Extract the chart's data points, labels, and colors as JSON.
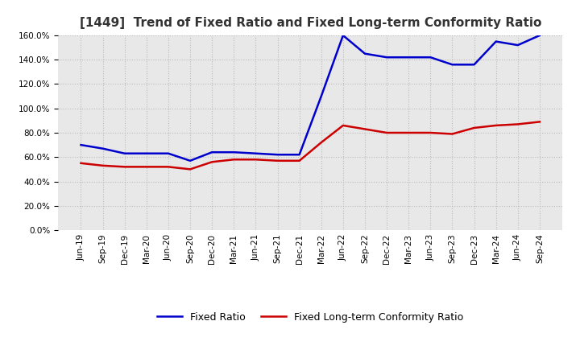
{
  "title": "[1449]  Trend of Fixed Ratio and Fixed Long-term Conformity Ratio",
  "x_labels": [
    "Jun-19",
    "Sep-19",
    "Dec-19",
    "Mar-20",
    "Jun-20",
    "Sep-20",
    "Dec-20",
    "Mar-21",
    "Jun-21",
    "Sep-21",
    "Dec-21",
    "Mar-22",
    "Jun-22",
    "Sep-22",
    "Dec-22",
    "Mar-23",
    "Jun-23",
    "Sep-23",
    "Dec-23",
    "Mar-24",
    "Jun-24",
    "Sep-24"
  ],
  "fixed_ratio": [
    70.0,
    67.0,
    63.0,
    63.0,
    63.0,
    57.0,
    64.0,
    64.0,
    63.0,
    62.0,
    62.0,
    110.0,
    160.0,
    145.0,
    142.0,
    142.0,
    142.0,
    136.0,
    136.0,
    155.0,
    152.0,
    160.0
  ],
  "fixed_lt_ratio": [
    55.0,
    53.0,
    52.0,
    52.0,
    52.0,
    50.0,
    56.0,
    58.0,
    58.0,
    57.0,
    57.0,
    72.0,
    86.0,
    83.0,
    80.0,
    80.0,
    80.0,
    79.0,
    84.0,
    86.0,
    87.0,
    89.0
  ],
  "ylim_min": 0.0,
  "ylim_max": 160.0,
  "yticks": [
    0.0,
    20.0,
    40.0,
    60.0,
    80.0,
    100.0,
    120.0,
    140.0,
    160.0
  ],
  "line_color_fixed": "#0000CC",
  "line_color_lt": "#CC0000",
  "background_color": "#FFFFFF",
  "plot_bg_color": "#E8E8E8",
  "grid_color": "#BBBBBB",
  "legend_fixed": "Fixed Ratio",
  "legend_lt": "Fixed Long-term Conformity Ratio",
  "title_fontsize": 11,
  "tick_fontsize": 7.5,
  "legend_fontsize": 9,
  "linewidth": 1.8
}
